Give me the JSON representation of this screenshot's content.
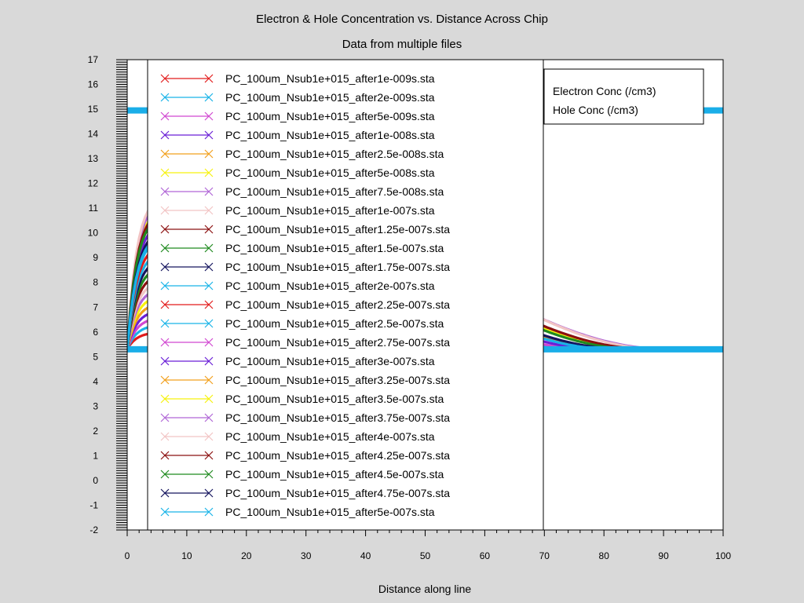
{
  "chart_data": {
    "type": "line",
    "title": "Electron & Hole Concentration vs. Distance Across Chip",
    "subtitle": "Data from multiple files",
    "xlabel": "Distance along line",
    "ylabel": "",
    "xlim": [
      0,
      100
    ],
    "ylim": [
      -2,
      17
    ],
    "x_ticks": [
      "0",
      "10",
      "20",
      "30",
      "40",
      "50",
      "60",
      "70",
      "80",
      "90",
      "100"
    ],
    "y_ticks": [
      "-2",
      "-1",
      "0",
      "1",
      "2",
      "3",
      "4",
      "5",
      "6",
      "7",
      "8",
      "9",
      "10",
      "11",
      "12",
      "13",
      "14",
      "15",
      "16",
      "17"
    ],
    "y_minor_ticks_per_unit": 10,
    "grid": false,
    "legend_position": "upper-left",
    "baseline_color": "#1aaee8",
    "baselines": [
      {
        "name": "doping_level",
        "y": 14.95
      },
      {
        "name": "equilibrium_minority",
        "y": 5.3
      }
    ],
    "secondary_legend": [
      "Electron Conc (/cm3)",
      "Hole Conc (/cm3)"
    ],
    "series": [
      {
        "name": "PC_100um_Nsub1e+015_after1e-009s.sta",
        "color": "#e21b1b",
        "peak": 6.0,
        "decay_start": 3,
        "decay_end": 42
      },
      {
        "name": "PC_100um_Nsub1e+015_after2e-009s.sta",
        "color": "#19b3e8",
        "peak": 6.3,
        "decay_start": 3,
        "decay_end": 44
      },
      {
        "name": "PC_100um_Nsub1e+015_after5e-009s.sta",
        "color": "#d147d1",
        "peak": 6.6,
        "decay_start": 4,
        "decay_end": 46
      },
      {
        "name": "PC_100um_Nsub1e+015_after1e-008s.sta",
        "color": "#6a1fd6",
        "peak": 6.9,
        "decay_start": 4,
        "decay_end": 48
      },
      {
        "name": "PC_100um_Nsub1e+015_after2.5e-008s.sta",
        "color": "#f2a01c",
        "peak": 7.2,
        "decay_start": 5,
        "decay_end": 52
      },
      {
        "name": "PC_100um_Nsub1e+015_after5e-008s.sta",
        "color": "#f7f20e",
        "peak": 7.5,
        "decay_start": 6,
        "decay_end": 56
      },
      {
        "name": "PC_100um_Nsub1e+015_after7.5e-008s.sta",
        "color": "#b066d6",
        "peak": 7.8,
        "decay_start": 7,
        "decay_end": 60
      },
      {
        "name": "PC_100um_Nsub1e+015_after1e-007s.sta",
        "color": "#f2c4c4",
        "peak": 8.1,
        "decay_start": 8,
        "decay_end": 62
      },
      {
        "name": "PC_100um_Nsub1e+015_after1.25e-007s.sta",
        "color": "#8b1010",
        "peak": 8.4,
        "decay_start": 9,
        "decay_end": 64
      },
      {
        "name": "PC_100um_Nsub1e+015_after1.5e-007s.sta",
        "color": "#1f8a1f",
        "peak": 8.7,
        "decay_start": 10,
        "decay_end": 66
      },
      {
        "name": "PC_100um_Nsub1e+015_after1.75e-007s.sta",
        "color": "#14145e",
        "peak": 9.0,
        "decay_start": 11,
        "decay_end": 72
      },
      {
        "name": "PC_100um_Nsub1e+015_after2e-007s.sta",
        "color": "#19b3e8",
        "peak": 9.3,
        "decay_start": 12,
        "decay_end": 74
      },
      {
        "name": "PC_100um_Nsub1e+015_after2.25e-007s.sta",
        "color": "#e21b1b",
        "peak": 9.6,
        "decay_start": 13,
        "decay_end": 76
      },
      {
        "name": "PC_100um_Nsub1e+015_after2.5e-007s.sta",
        "color": "#19b3e8",
        "peak": 9.9,
        "decay_start": 14,
        "decay_end": 77
      },
      {
        "name": "PC_100um_Nsub1e+015_after2.75e-007s.sta",
        "color": "#d147d1",
        "peak": 10.2,
        "decay_start": 15,
        "decay_end": 78
      },
      {
        "name": "PC_100um_Nsub1e+015_after3e-007s.sta",
        "color": "#6a1fd6",
        "peak": 10.5,
        "decay_start": 16,
        "decay_end": 80
      },
      {
        "name": "PC_100um_Nsub1e+015_after3.25e-007s.sta",
        "color": "#f2a01c",
        "peak": 10.8,
        "decay_start": 17,
        "decay_end": 83
      },
      {
        "name": "PC_100um_Nsub1e+015_after3.5e-007s.sta",
        "color": "#f7f20e",
        "peak": 11.1,
        "decay_start": 18,
        "decay_end": 87
      },
      {
        "name": "PC_100um_Nsub1e+015_after3.75e-007s.sta",
        "color": "#b066d6",
        "peak": 11.4,
        "decay_start": 19,
        "decay_end": 91
      },
      {
        "name": "PC_100um_Nsub1e+015_after4e-007s.sta",
        "color": "#f2c4c4",
        "peak": 11.6,
        "decay_start": 20,
        "decay_end": 90
      },
      {
        "name": "PC_100um_Nsub1e+015_after4.25e-007s.sta",
        "color": "#8b1010",
        "peak": 11.0,
        "decay_start": 20,
        "decay_end": 88
      },
      {
        "name": "PC_100um_Nsub1e+015_after4.5e-007s.sta",
        "color": "#1f8a1f",
        "peak": 10.8,
        "decay_start": 20,
        "decay_end": 86
      },
      {
        "name": "PC_100um_Nsub1e+015_after4.75e-007s.sta",
        "color": "#14145e",
        "peak": 10.2,
        "decay_start": 20,
        "decay_end": 84
      },
      {
        "name": "PC_100um_Nsub1e+015_after5e-007s.sta",
        "color": "#19b3e8",
        "peak": 10.0,
        "decay_start": 20,
        "decay_end": 82
      }
    ]
  }
}
